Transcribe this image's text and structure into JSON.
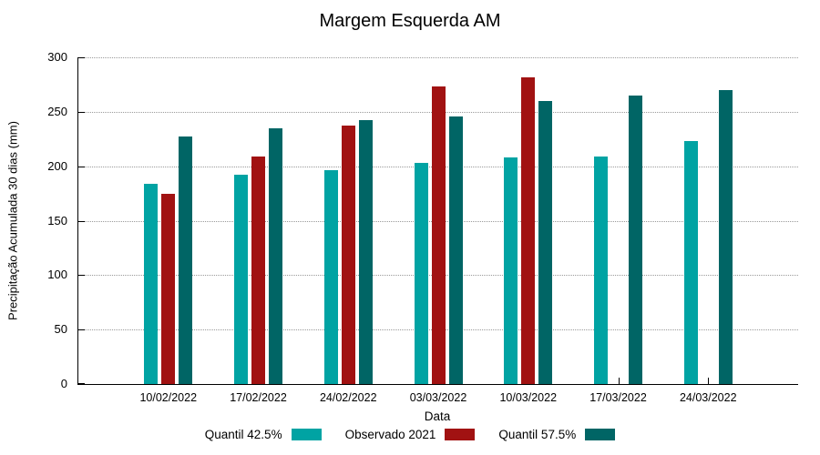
{
  "chart_data": {
    "type": "bar",
    "title": "Margem Esquerda AM",
    "xlabel": "Data",
    "ylabel": "Precipitação Acumulada 30 dias (mm)",
    "ylim": [
      0,
      300
    ],
    "yticks": [
      0,
      50,
      100,
      150,
      200,
      250,
      300
    ],
    "grid": "horizontal-dotted",
    "legend_position": "bottom-center",
    "categories": [
      "10/02/2022",
      "17/02/2022",
      "24/02/2022",
      "03/03/2022",
      "10/03/2022",
      "17/03/2022",
      "24/03/2022"
    ],
    "series": [
      {
        "name": "Quantil 42.5%",
        "color": "#00A3A3",
        "values": [
          184,
          192,
          196,
          203,
          208,
          209,
          223
        ]
      },
      {
        "name": "Observado 2021",
        "color": "#A11212",
        "values": [
          175,
          209,
          237,
          273,
          282,
          null,
          null
        ]
      },
      {
        "name": "Quantil 57.5%",
        "color": "#006565",
        "values": [
          227,
          235,
          242,
          246,
          260,
          265,
          270
        ]
      }
    ]
  }
}
